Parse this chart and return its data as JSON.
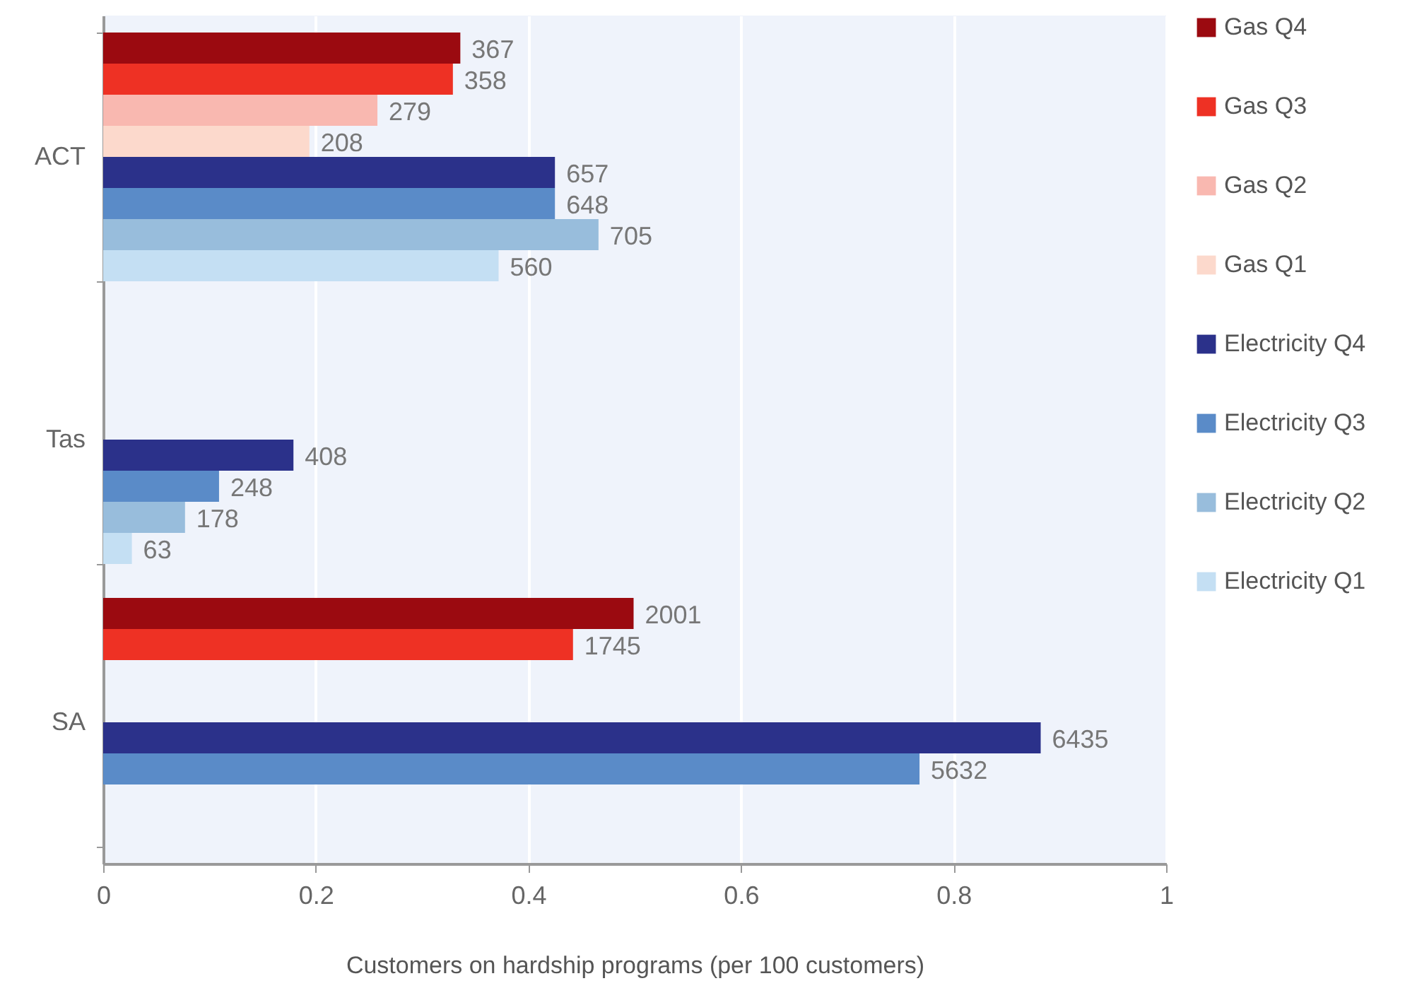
{
  "chart_data": {
    "type": "bar",
    "orientation": "horizontal",
    "categories": [
      "ACT",
      "Tas",
      "SA"
    ],
    "xlabel": "Customers on hardship programs (per 100 customers)",
    "xlim": [
      0,
      1
    ],
    "xticks": [
      {
        "value": 0,
        "label": "0"
      },
      {
        "value": 0.2,
        "label": "0.2"
      },
      {
        "value": 0.4,
        "label": "0.4"
      },
      {
        "value": 0.6,
        "label": "0.6"
      },
      {
        "value": 0.8,
        "label": "0.8"
      },
      {
        "value": 1,
        "label": "1"
      }
    ],
    "grid": "x",
    "legend": "right",
    "series": [
      {
        "name": "Gas Q4",
        "color": "#9b0a10",
        "values": [
          0.336,
          null,
          0.499
        ]
      },
      {
        "name": "Gas Q3",
        "color": "#ee3124",
        "values": [
          0.329,
          null,
          0.442
        ]
      },
      {
        "name": "Gas Q2",
        "color": "#f9b8b0",
        "values": [
          0.258,
          null,
          null
        ]
      },
      {
        "name": "Gas Q1",
        "color": "#fcd9cc",
        "values": [
          0.194,
          null,
          null
        ]
      },
      {
        "name": "Electricity Q4",
        "color": "#2b318a",
        "values": [
          0.425,
          0.179,
          0.882
        ]
      },
      {
        "name": "Electricity Q3",
        "color": "#5a8bc8",
        "values": [
          0.425,
          0.109,
          0.768
        ]
      },
      {
        "name": "Electricity Q2",
        "color": "#98bddc",
        "values": [
          0.466,
          0.077,
          null
        ]
      },
      {
        "name": "Electricity Q1",
        "color": "#c4dff3",
        "values": [
          0.372,
          0.027,
          null
        ]
      }
    ],
    "annotations": [
      "367",
      "358",
      "279",
      "208",
      "657",
      "648",
      "705",
      "560",
      "408",
      "248",
      "178",
      "63",
      "2001",
      "1745",
      "6435",
      "5632"
    ]
  }
}
